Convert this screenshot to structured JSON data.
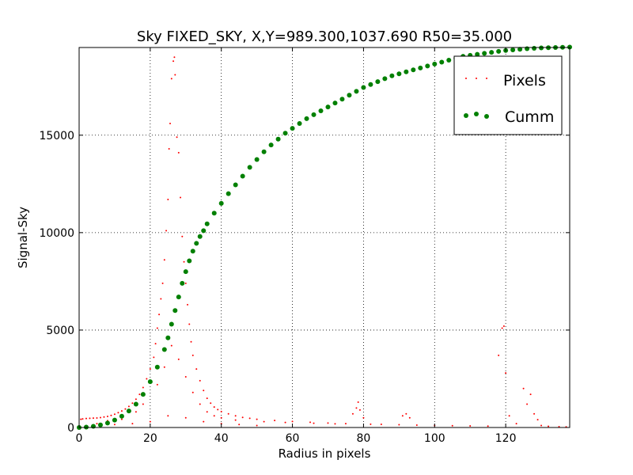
{
  "chart_data": {
    "type": "scatter",
    "title": "Sky FIXED_SKY, X,Y=989.300,1037.690 R50=35.000",
    "xlabel": "Radius in pixels",
    "ylabel": "Signal-Sky",
    "xlim": [
      0,
      138
    ],
    "ylim": [
      0,
      19500
    ],
    "xticks": [
      0,
      20,
      40,
      60,
      80,
      100,
      120
    ],
    "yticks": [
      0,
      5000,
      10000,
      15000
    ],
    "grid": true,
    "legend_position": "top-right",
    "series": [
      {
        "name": "Pixels",
        "marker": "dot",
        "color": "#ff0000",
        "points": [
          [
            0.5,
            420
          ],
          [
            1,
            440
          ],
          [
            2,
            460
          ],
          [
            3,
            470
          ],
          [
            4,
            480
          ],
          [
            5,
            490
          ],
          [
            6,
            510
          ],
          [
            7,
            540
          ],
          [
            8,
            570
          ],
          [
            9,
            620
          ],
          [
            10,
            680
          ],
          [
            11,
            760
          ],
          [
            12,
            850
          ],
          [
            13,
            950
          ],
          [
            14,
            1080
          ],
          [
            15,
            1250
          ],
          [
            16,
            1450
          ],
          [
            17,
            1700
          ],
          [
            18,
            2050
          ],
          [
            19,
            2500
          ],
          [
            20,
            3000
          ],
          [
            21,
            3600
          ],
          [
            21.5,
            4300
          ],
          [
            22,
            5100
          ],
          [
            22.5,
            5800
          ],
          [
            23,
            6600
          ],
          [
            23.5,
            7400
          ],
          [
            24,
            8600
          ],
          [
            24.5,
            10100
          ],
          [
            25,
            11700
          ],
          [
            25.3,
            14300
          ],
          [
            25.6,
            15600
          ],
          [
            26,
            17900
          ],
          [
            26.5,
            18800
          ],
          [
            26.8,
            19000
          ],
          [
            27,
            18100
          ],
          [
            27.5,
            14900
          ],
          [
            28,
            14100
          ],
          [
            28.5,
            11800
          ],
          [
            29,
            9800
          ],
          [
            29.5,
            8500
          ],
          [
            30,
            7400
          ],
          [
            30.5,
            6300
          ],
          [
            31,
            5300
          ],
          [
            31.5,
            4400
          ],
          [
            32,
            3700
          ],
          [
            33,
            3000
          ],
          [
            34,
            2400
          ],
          [
            35,
            1900
          ],
          [
            36,
            1500
          ],
          [
            37,
            1250
          ],
          [
            38,
            1050
          ],
          [
            39,
            920
          ],
          [
            40,
            820
          ],
          [
            42,
            700
          ],
          [
            44,
            600
          ],
          [
            46,
            520
          ],
          [
            48,
            470
          ],
          [
            50,
            420
          ],
          [
            55,
            360
          ],
          [
            60,
            310
          ],
          [
            65,
            270
          ],
          [
            70,
            230
          ],
          [
            75,
            200
          ],
          [
            77,
            700
          ],
          [
            78,
            1000
          ],
          [
            78.5,
            1300
          ],
          [
            79,
            900
          ],
          [
            80,
            500
          ],
          [
            85,
            160
          ],
          [
            90,
            140
          ],
          [
            91,
            600
          ],
          [
            92,
            700
          ],
          [
            93,
            500
          ],
          [
            95,
            120
          ],
          [
            100,
            100
          ],
          [
            105,
            90
          ],
          [
            110,
            80
          ],
          [
            115,
            70
          ],
          [
            118,
            3700
          ],
          [
            119,
            5100
          ],
          [
            119.5,
            5200
          ],
          [
            120,
            2800
          ],
          [
            121,
            600
          ],
          [
            123,
            200
          ],
          [
            125,
            2000
          ],
          [
            126,
            1200
          ],
          [
            127,
            1700
          ],
          [
            128,
            700
          ],
          [
            129,
            400
          ],
          [
            130,
            100
          ],
          [
            132,
            60
          ],
          [
            135,
            40
          ],
          [
            137,
            30
          ],
          [
            5,
            200
          ],
          [
            10,
            150
          ],
          [
            15,
            200
          ],
          [
            20,
            300
          ],
          [
            25,
            600
          ],
          [
            30,
            500
          ],
          [
            35,
            300
          ],
          [
            40,
            200
          ],
          [
            45,
            150
          ],
          [
            50,
            100
          ],
          [
            8,
            350
          ],
          [
            12,
            420
          ],
          [
            16,
            800
          ],
          [
            18,
            1200
          ],
          [
            22,
            2200
          ],
          [
            24,
            3100
          ],
          [
            26,
            4200
          ],
          [
            28,
            3500
          ],
          [
            30,
            2600
          ],
          [
            32,
            1800
          ],
          [
            34,
            1200
          ],
          [
            36,
            800
          ],
          [
            38,
            600
          ],
          [
            40,
            500
          ],
          [
            44,
            380
          ],
          [
            52,
            300
          ],
          [
            58,
            260
          ],
          [
            66,
            220
          ],
          [
            72,
            190
          ],
          [
            82,
            170
          ]
        ]
      },
      {
        "name": "Cumm",
        "marker": "circle",
        "color": "#008000",
        "points": [
          [
            0,
            0
          ],
          [
            2,
            20
          ],
          [
            4,
            60
          ],
          [
            6,
            130
          ],
          [
            8,
            230
          ],
          [
            10,
            380
          ],
          [
            12,
            580
          ],
          [
            14,
            850
          ],
          [
            16,
            1200
          ],
          [
            18,
            1700
          ],
          [
            20,
            2350
          ],
          [
            22,
            3100
          ],
          [
            24,
            4000
          ],
          [
            25,
            4600
          ],
          [
            26,
            5300
          ],
          [
            27,
            6000
          ],
          [
            28,
            6700
          ],
          [
            29,
            7400
          ],
          [
            30,
            8000
          ],
          [
            31,
            8550
          ],
          [
            32,
            9050
          ],
          [
            33,
            9450
          ],
          [
            34,
            9800
          ],
          [
            35,
            10100
          ],
          [
            36,
            10450
          ],
          [
            38,
            11000
          ],
          [
            40,
            11500
          ],
          [
            42,
            12000
          ],
          [
            44,
            12450
          ],
          [
            46,
            12900
          ],
          [
            48,
            13350
          ],
          [
            50,
            13750
          ],
          [
            52,
            14150
          ],
          [
            54,
            14500
          ],
          [
            56,
            14800
          ],
          [
            58,
            15100
          ],
          [
            60,
            15350
          ],
          [
            62,
            15600
          ],
          [
            64,
            15850
          ],
          [
            66,
            16050
          ],
          [
            68,
            16250
          ],
          [
            70,
            16450
          ],
          [
            72,
            16650
          ],
          [
            74,
            16850
          ],
          [
            76,
            17050
          ],
          [
            78,
            17250
          ],
          [
            80,
            17450
          ],
          [
            82,
            17600
          ],
          [
            84,
            17750
          ],
          [
            86,
            17900
          ],
          [
            88,
            18050
          ],
          [
            90,
            18150
          ],
          [
            92,
            18250
          ],
          [
            94,
            18350
          ],
          [
            96,
            18450
          ],
          [
            98,
            18550
          ],
          [
            100,
            18650
          ],
          [
            102,
            18750
          ],
          [
            104,
            18850
          ],
          [
            106,
            18950
          ],
          [
            108,
            19050
          ],
          [
            110,
            19100
          ],
          [
            112,
            19150
          ],
          [
            114,
            19200
          ],
          [
            116,
            19250
          ],
          [
            118,
            19300
          ],
          [
            120,
            19350
          ],
          [
            122,
            19380
          ],
          [
            124,
            19410
          ],
          [
            126,
            19440
          ],
          [
            128,
            19460
          ],
          [
            130,
            19480
          ],
          [
            132,
            19490
          ],
          [
            134,
            19500
          ],
          [
            136,
            19510
          ],
          [
            138,
            19520
          ]
        ]
      }
    ]
  }
}
